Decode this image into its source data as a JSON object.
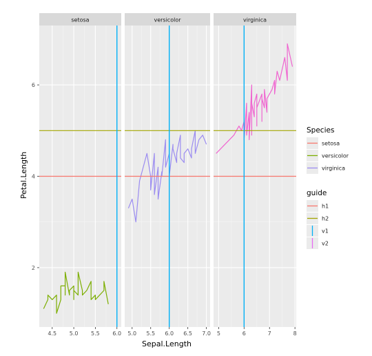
{
  "chart_data": {
    "type": "line",
    "xlabel": "Sepal.Length",
    "ylabel": "Petal.Length",
    "y_ticks": [
      "2",
      "4",
      "6"
    ],
    "y_tick_values": [
      2,
      4,
      6
    ],
    "ylim": [
      0.7,
      7.3
    ],
    "grid": true,
    "facets": [
      {
        "name": "setosa",
        "xlim": [
          4.2,
          6.1
        ],
        "x_ticks": [
          "4.5",
          "5.0",
          "5.5",
          "6.0"
        ],
        "x_tick_values": [
          4.5,
          5.0,
          5.5,
          6.0
        ],
        "series_color": "#7cae00",
        "points": [
          [
            4.3,
            1.1
          ],
          [
            4.4,
            1.3
          ],
          [
            4.4,
            1.4
          ],
          [
            4.5,
            1.3
          ],
          [
            4.6,
            1.4
          ],
          [
            4.6,
            1.0
          ],
          [
            4.7,
            1.3
          ],
          [
            4.7,
            1.6
          ],
          [
            4.8,
            1.6
          ],
          [
            4.8,
            1.4
          ],
          [
            4.8,
            1.9
          ],
          [
            4.9,
            1.4
          ],
          [
            4.9,
            1.5
          ],
          [
            5.0,
            1.6
          ],
          [
            5.0,
            1.3
          ],
          [
            5.0,
            1.5
          ],
          [
            5.1,
            1.4
          ],
          [
            5.1,
            1.7
          ],
          [
            5.1,
            1.9
          ],
          [
            5.2,
            1.5
          ],
          [
            5.2,
            1.4
          ],
          [
            5.3,
            1.5
          ],
          [
            5.4,
            1.7
          ],
          [
            5.4,
            1.3
          ],
          [
            5.5,
            1.4
          ],
          [
            5.5,
            1.3
          ],
          [
            5.7,
            1.5
          ],
          [
            5.7,
            1.7
          ],
          [
            5.8,
            1.2
          ]
        ]
      },
      {
        "name": "versicolor",
        "xlim": [
          4.8,
          7.1
        ],
        "x_ticks": [
          "5.0",
          "5.5",
          "6.0",
          "6.5",
          "7.0"
        ],
        "x_tick_values": [
          5.0,
          5.5,
          6.0,
          6.5,
          7.0
        ],
        "series_color": "#9b8cf1",
        "points": [
          [
            4.9,
            3.3
          ],
          [
            5.0,
            3.5
          ],
          [
            5.1,
            3.0
          ],
          [
            5.2,
            3.9
          ],
          [
            5.4,
            4.5
          ],
          [
            5.5,
            4.0
          ],
          [
            5.5,
            3.7
          ],
          [
            5.6,
            4.5
          ],
          [
            5.6,
            3.6
          ],
          [
            5.7,
            4.2
          ],
          [
            5.7,
            3.5
          ],
          [
            5.8,
            4.1
          ],
          [
            5.8,
            4.0
          ],
          [
            5.9,
            4.8
          ],
          [
            5.9,
            4.2
          ],
          [
            6.0,
            4.5
          ],
          [
            6.0,
            4.0
          ],
          [
            6.1,
            4.7
          ],
          [
            6.1,
            4.6
          ],
          [
            6.2,
            4.3
          ],
          [
            6.2,
            4.5
          ],
          [
            6.3,
            4.9
          ],
          [
            6.3,
            4.4
          ],
          [
            6.4,
            4.3
          ],
          [
            6.4,
            4.5
          ],
          [
            6.5,
            4.6
          ],
          [
            6.6,
            4.4
          ],
          [
            6.6,
            4.6
          ],
          [
            6.7,
            5.0
          ],
          [
            6.7,
            4.5
          ],
          [
            6.8,
            4.8
          ],
          [
            6.9,
            4.9
          ],
          [
            7.0,
            4.7
          ]
        ]
      },
      {
        "name": "virginica",
        "xlim": [
          4.8,
          8.05
        ],
        "x_ticks": [
          "5",
          "6",
          "7",
          "8"
        ],
        "x_tick_values": [
          5,
          6,
          7,
          8
        ],
        "series_color": "#f064d0",
        "points": [
          [
            4.9,
            4.5
          ],
          [
            5.6,
            4.9
          ],
          [
            5.7,
            5.0
          ],
          [
            5.8,
            5.1
          ],
          [
            5.9,
            5.0
          ],
          [
            6.0,
            5.2
          ],
          [
            6.0,
            4.8
          ],
          [
            6.1,
            5.6
          ],
          [
            6.1,
            4.9
          ],
          [
            6.2,
            5.4
          ],
          [
            6.2,
            4.8
          ],
          [
            6.3,
            6.0
          ],
          [
            6.3,
            4.9
          ],
          [
            6.3,
            5.6
          ],
          [
            6.4,
            5.3
          ],
          [
            6.4,
            5.5
          ],
          [
            6.4,
            5.6
          ],
          [
            6.5,
            5.8
          ],
          [
            6.5,
            5.1
          ],
          [
            6.5,
            5.5
          ],
          [
            6.7,
            5.8
          ],
          [
            6.7,
            5.2
          ],
          [
            6.7,
            5.7
          ],
          [
            6.8,
            5.5
          ],
          [
            6.8,
            5.9
          ],
          [
            6.9,
            5.4
          ],
          [
            6.9,
            5.7
          ],
          [
            7.1,
            5.9
          ],
          [
            7.2,
            6.1
          ],
          [
            7.2,
            5.8
          ],
          [
            7.3,
            6.3
          ],
          [
            7.4,
            6.1
          ],
          [
            7.6,
            6.6
          ],
          [
            7.7,
            6.1
          ],
          [
            7.7,
            6.7
          ],
          [
            7.7,
            6.9
          ],
          [
            7.9,
            6.4
          ]
        ]
      }
    ],
    "reference_lines": [
      {
        "guide": "h1",
        "orientation": "horizontal",
        "value": 4,
        "color": "#f8766d"
      },
      {
        "guide": "h2",
        "orientation": "horizontal",
        "value": 5,
        "color": "#a3a500"
      },
      {
        "guide": "v1",
        "orientation": "vertical",
        "value": 6,
        "color": "#00b0f6",
        "facet": "setosa"
      },
      {
        "guide": "v1",
        "orientation": "vertical",
        "value": 6,
        "color": "#00b0f6",
        "facet": "versicolor"
      },
      {
        "guide": "v1",
        "orientation": "vertical",
        "value": 6,
        "color": "#00b0f6",
        "facet": "virginica"
      }
    ],
    "legends": [
      {
        "title": "Species",
        "entries": [
          {
            "label": "setosa",
            "color": "#f8766d",
            "kind": "hline"
          },
          {
            "label": "versicolor",
            "color": "#7cae00",
            "kind": "hline"
          },
          {
            "label": "virginica",
            "color": "#9b8cf1",
            "kind": "hline"
          }
        ]
      },
      {
        "title": "guide",
        "entries": [
          {
            "label": "h1",
            "color": "#f8766d",
            "kind": "hline"
          },
          {
            "label": "h2",
            "color": "#a3a500",
            "kind": "hline"
          },
          {
            "label": "v1",
            "color": "#00b0f6",
            "kind": "vline"
          },
          {
            "label": "v2",
            "color": "#e76bf3",
            "kind": "vline"
          }
        ]
      }
    ],
    "colors": {
      "panel_bg": "#ebebeb",
      "strip_bg": "#d9d9d9",
      "grid_major": "#ffffff"
    }
  }
}
